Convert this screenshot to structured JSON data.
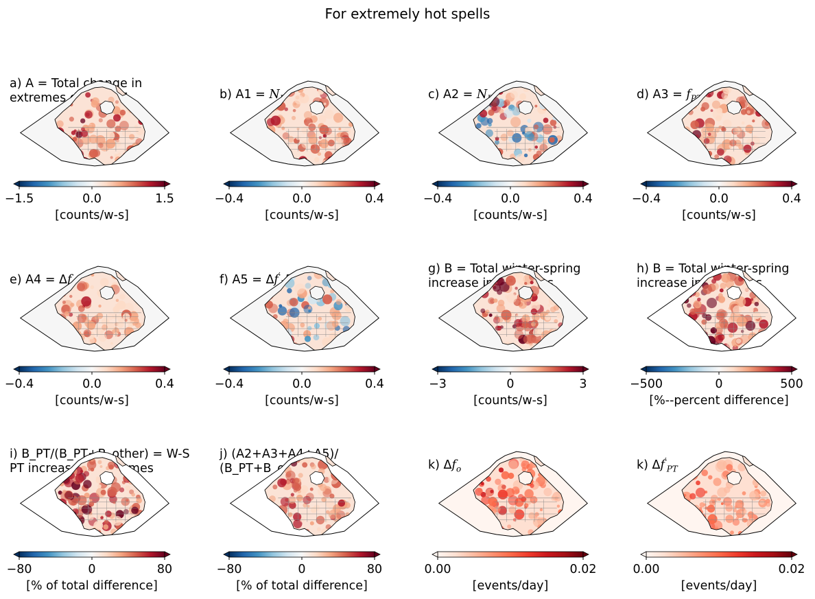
{
  "figure": {
    "title": "For extremely hot spells"
  },
  "chart_data": [
    {
      "type": "heatmap",
      "id": "a",
      "title_lines": [
        "a) A = Total change in",
        "extremes during PT"
      ],
      "colormap": "RdBu_r",
      "extend": "both",
      "ticks": [
        "−1.5",
        "0.0",
        "1.5"
      ],
      "range": [
        -1.5,
        1.5
      ],
      "colorbar_label": "[counts/w-s]",
      "pattern": "warm_broad"
    },
    {
      "type": "heatmap",
      "id": "b",
      "title_lines": [
        "b) A1 = N_{PT,p} Δf_o"
      ],
      "colormap": "RdBu_r",
      "extend": "both",
      "ticks": [
        "−0.4",
        "0.0",
        "0.4"
      ],
      "range": [
        -0.4,
        0.4
      ],
      "colorbar_label": "[counts/w-s]",
      "pattern": "warm_west"
    },
    {
      "type": "heatmap",
      "id": "c",
      "title_lines": [
        "c) A2 = N_{PT,p} Δf'_{PT}"
      ],
      "colormap": "RdBu_r",
      "extend": "both",
      "ticks": [
        "−0.4",
        "0.0",
        "0.4"
      ],
      "range": [
        -0.4,
        0.4
      ],
      "colorbar_label": "[counts/w-s]",
      "pattern": "mixed"
    },
    {
      "type": "heatmap",
      "id": "d",
      "title_lines": [
        "d) A3 = f_{PT,p} ΔN_{PT}"
      ],
      "colormap": "RdBu_r",
      "extend": "both",
      "ticks": [
        "−0.4",
        "0.0",
        "0.4"
      ],
      "range": [
        -0.4,
        0.4
      ],
      "colorbar_label": "[counts/w-s]",
      "pattern": "warm_broad"
    },
    {
      "type": "heatmap",
      "id": "e",
      "title_lines": [
        "e) A4 = Δf_o ΔN_{PT}"
      ],
      "colormap": "RdBu_r",
      "extend": "both",
      "ticks": [
        "−0.4",
        "0.0",
        "0.4"
      ],
      "range": [
        -0.4,
        0.4
      ],
      "colorbar_label": "[counts/w-s]",
      "pattern": "warm_light"
    },
    {
      "type": "heatmap",
      "id": "f",
      "title_lines": [
        "f) A5 = Δf'_P T ΔN_{PT}"
      ],
      "colormap": "RdBu_r",
      "extend": "both",
      "ticks": [
        "−0.4",
        "0.0",
        "0.4"
      ],
      "range": [
        -0.4,
        0.4
      ],
      "colorbar_label": "[counts/w-s]",
      "pattern": "mixed_light"
    },
    {
      "type": "heatmap",
      "id": "g",
      "title_lines": [
        "g) B = Total winter-spring",
        "increase in extremes"
      ],
      "colormap": "RdBu_r",
      "extend": "both",
      "ticks": [
        "−3",
        "0",
        "3"
      ],
      "range": [
        -3,
        3
      ],
      "colorbar_label": "[counts/w-s]",
      "pattern": "warm_strong"
    },
    {
      "type": "heatmap",
      "id": "h",
      "title_lines": [
        "h) B = Total winter-spring",
        "increase in extremes"
      ],
      "colormap": "RdBu_r",
      "extend": "both",
      "ticks": [
        "−500",
        "0",
        "500"
      ],
      "range": [
        -500,
        500
      ],
      "colorbar_label": "[%--percent difference]",
      "pattern": "warm_strong_land"
    },
    {
      "type": "heatmap",
      "id": "i",
      "title_lines": [
        "i) B_PT/(B_PT+B_other) = W-S",
        "PT increase in extremes"
      ],
      "colormap": "RdBu_r",
      "extend": "both",
      "ticks": [
        "−80",
        "0",
        "80"
      ],
      "range": [
        -80,
        80
      ],
      "colorbar_label": "[% of total difference]",
      "pattern": "warm_strong_land"
    },
    {
      "type": "heatmap",
      "id": "j",
      "title_lines": [
        "j) (A2+A3+A4+A5)/",
        "(B_PT+B_other)"
      ],
      "colormap": "RdBu_r",
      "extend": "both",
      "ticks": [
        "−80",
        "0",
        "80"
      ],
      "range": [
        -80,
        80
      ],
      "colorbar_label": "[% of total difference]",
      "pattern": "warm_land"
    },
    {
      "type": "heatmap",
      "id": "k1",
      "title_lines": [
        "k) Δf_o"
      ],
      "colormap": "Reds",
      "extend": "both",
      "ticks": [
        "0.00",
        "0.02"
      ],
      "range": [
        0,
        0.02
      ],
      "colorbar_label": "[events/day]",
      "pattern": "reds_west"
    },
    {
      "type": "heatmap",
      "id": "k2",
      "title_lines": [
        "k) Δf'_{PT}"
      ],
      "colormap": "Reds",
      "extend": "both",
      "ticks": [
        "0.00",
        "0.02"
      ],
      "range": [
        0,
        0.02
      ],
      "colorbar_label": "[events/day]",
      "pattern": "reds_light"
    }
  ]
}
